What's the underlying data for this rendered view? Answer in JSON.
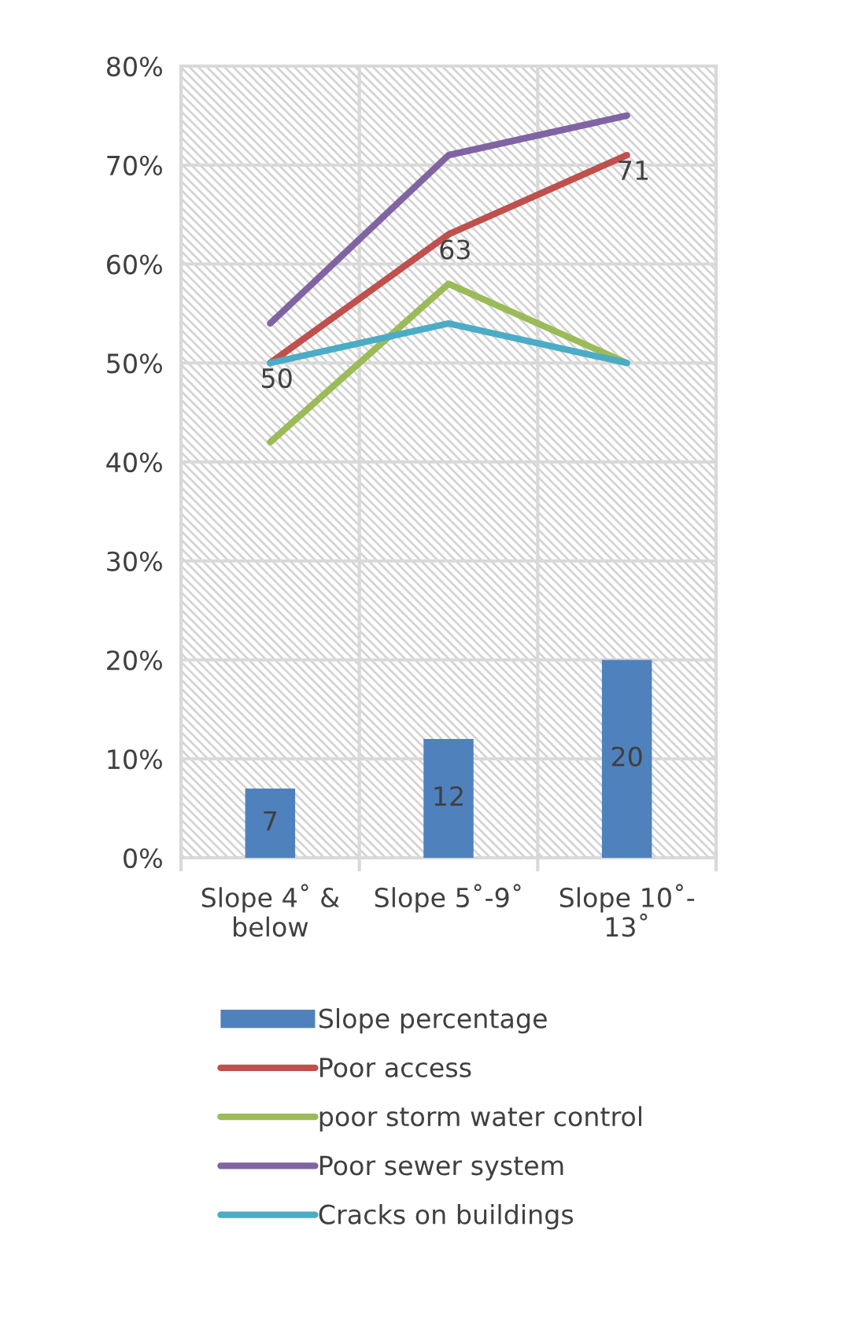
{
  "chart_data": {
    "type": "bar",
    "categories": [
      "Slope 4˚ &\nbelow",
      "Slope 5˚-9˚",
      "Slope 10˚-\n13˚"
    ],
    "series": [
      {
        "name": "Slope percentage",
        "color": "#4f81bd",
        "values": [
          7,
          12,
          20
        ],
        "value_labels": [
          "7",
          "12",
          "20"
        ]
      },
      {
        "name": "Poor access",
        "type": "line",
        "color": "#c0504d",
        "values": [
          50,
          63,
          71
        ],
        "value_labels": [
          "50",
          "63",
          "71"
        ]
      },
      {
        "name": "poor storm water control",
        "type": "line",
        "color": "#9bbb59",
        "values": [
          42,
          58,
          50
        ]
      },
      {
        "name": "Poor sewer system",
        "type": "line",
        "color": "#8064a2",
        "values": [
          54,
          71,
          75
        ]
      },
      {
        "name": "Cracks on buildings",
        "type": "line",
        "color": "#4bacc6",
        "values": [
          50,
          54,
          50
        ]
      }
    ],
    "ylim": [
      0,
      80
    ],
    "yticks": [
      {
        "value": 0,
        "label": "0%"
      },
      {
        "value": 10,
        "label": "10%"
      },
      {
        "value": 20,
        "label": "20%"
      },
      {
        "value": 30,
        "label": "30%"
      },
      {
        "value": 40,
        "label": "40%"
      },
      {
        "value": 50,
        "label": "50%"
      },
      {
        "value": 60,
        "label": "60%"
      },
      {
        "value": 70,
        "label": "70%"
      },
      {
        "value": 80,
        "label": "80%"
      }
    ],
    "grid": true,
    "legend": "bottom",
    "marker": "none",
    "line_style": "solid"
  }
}
